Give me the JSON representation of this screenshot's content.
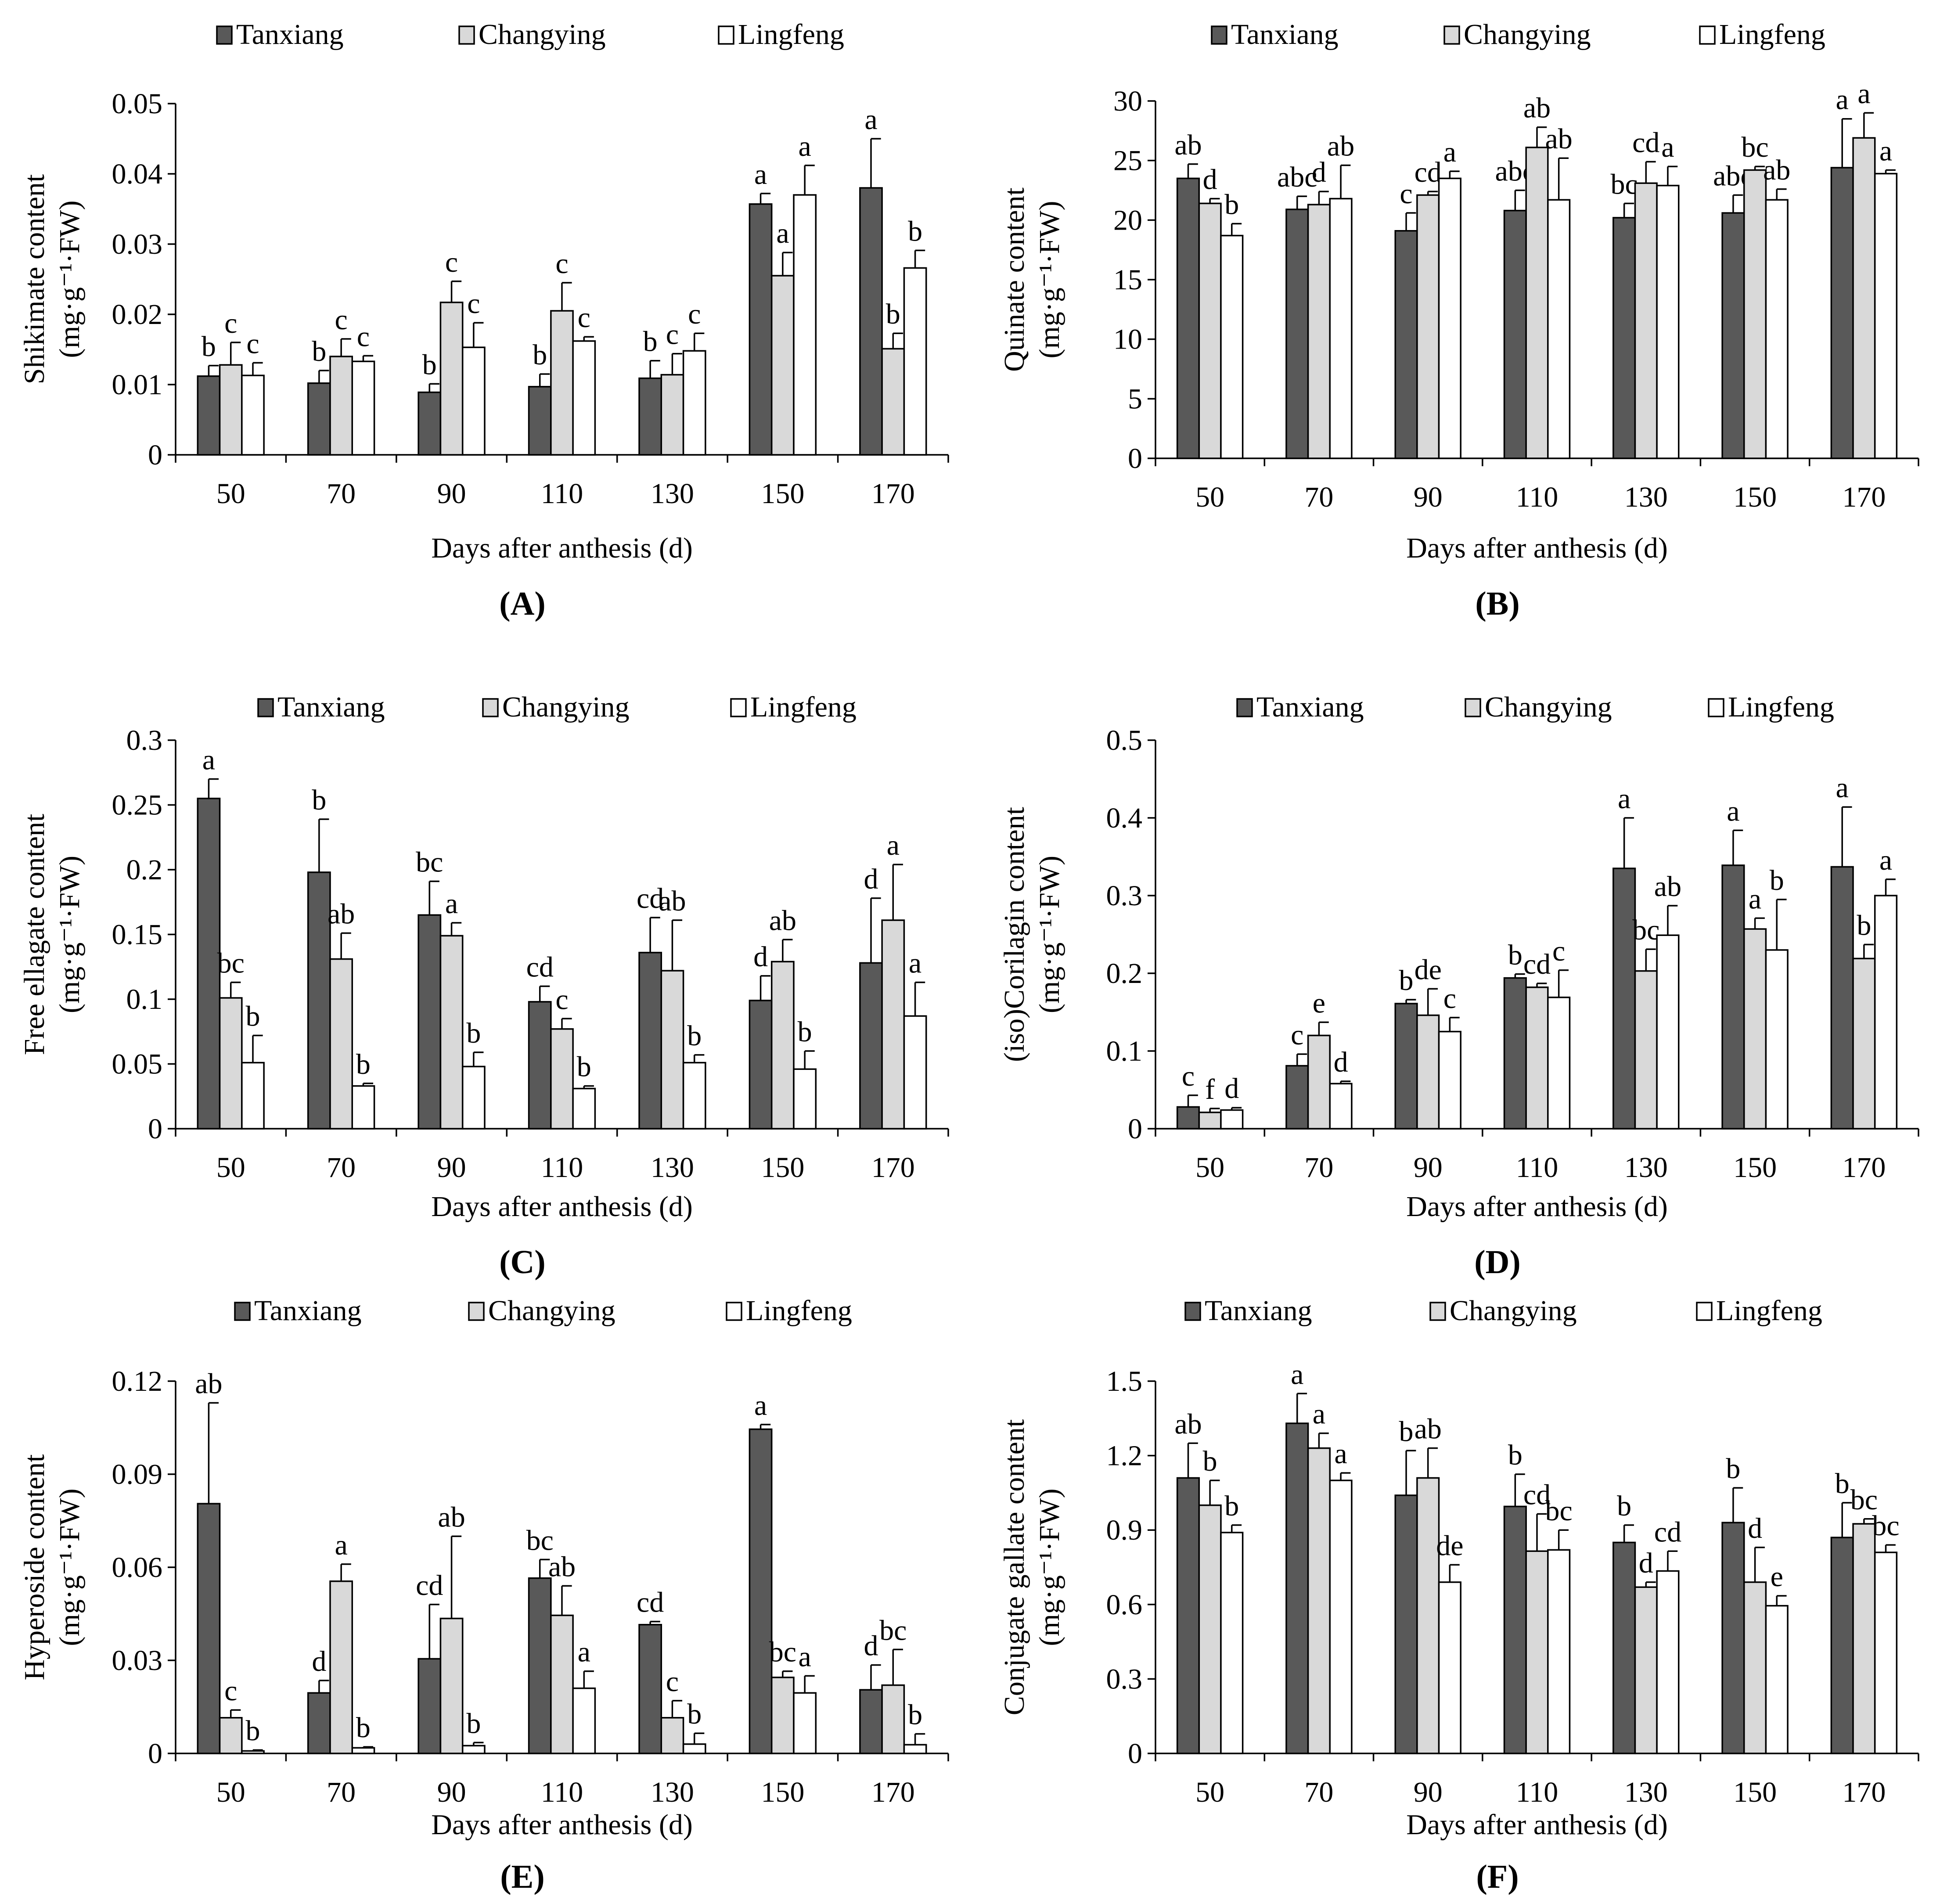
{
  "colors": {
    "Tanxiang": "#595959",
    "Changying": "#d9d9d9",
    "Lingfeng": "#ffffff",
    "stroke": "#000000"
  },
  "chart_data": [
    {
      "panel": "A",
      "type": "bar",
      "ylabel": "Shikimate content",
      "ylabel_unit": "(mg·g⁻¹·FW)",
      "xlabel": "Days after anthesis (d)",
      "legend": [
        "Tanxiang",
        "Changying",
        "Lingfeng"
      ],
      "categories": [
        "50",
        "70",
        "90",
        "110",
        "130",
        "150",
        "170"
      ],
      "ylim": [
        0,
        0.05
      ],
      "yticks": [
        {
          "v": 0,
          "t": "0"
        },
        {
          "v": 0.01,
          "t": "0.01"
        },
        {
          "v": 0.02,
          "t": "0.02"
        },
        {
          "v": 0.03,
          "t": "0.03"
        },
        {
          "v": 0.04,
          "t": "0.04"
        },
        {
          "v": 0.05,
          "t": "0.05"
        }
      ],
      "series": [
        {
          "name": "Tanxiang",
          "values": [
            0.0112,
            0.0102,
            0.0089,
            0.0097,
            0.0109,
            0.0357,
            0.038
          ],
          "errors": [
            0.0015,
            0.0018,
            0.0012,
            0.0018,
            0.0025,
            0.0015,
            0.007
          ],
          "labels": [
            "b",
            "b",
            "b",
            "b",
            "b",
            "a",
            "a"
          ]
        },
        {
          "name": "Changying",
          "values": [
            0.0128,
            0.014,
            0.0217,
            0.0205,
            0.0114,
            0.0255,
            0.0151
          ],
          "errors": [
            0.0032,
            0.0025,
            0.003,
            0.004,
            0.003,
            0.0033,
            0.0022
          ],
          "labels": [
            "c",
            "c",
            "c",
            "c",
            "c",
            "a",
            "b"
          ]
        },
        {
          "name": "Lingfeng",
          "values": [
            0.0113,
            0.0133,
            0.0153,
            0.0162,
            0.0148,
            0.037,
            0.0266
          ],
          "errors": [
            0.0018,
            0.0008,
            0.0035,
            0.0006,
            0.0025,
            0.0042,
            0.0025
          ],
          "labels": [
            "c",
            "c",
            "c",
            "c",
            "c",
            "a",
            "b"
          ]
        }
      ],
      "caption": "(A)"
    },
    {
      "panel": "B",
      "type": "bar",
      "ylabel": "Quinate content",
      "ylabel_unit": "(mg·g⁻¹·FW)",
      "xlabel": "Days after anthesis (d)",
      "legend": [
        "Tanxiang",
        "Changying",
        "Lingfeng"
      ],
      "categories": [
        "50",
        "70",
        "90",
        "110",
        "130",
        "150",
        "170"
      ],
      "ylim": [
        0,
        30
      ],
      "yticks": [
        {
          "v": 0,
          "t": "0"
        },
        {
          "v": 5,
          "t": "5"
        },
        {
          "v": 10,
          "t": "10"
        },
        {
          "v": 15,
          "t": "15"
        },
        {
          "v": 20,
          "t": "20"
        },
        {
          "v": 25,
          "t": "25"
        },
        {
          "v": 30,
          "t": "30"
        }
      ],
      "series": [
        {
          "name": "Tanxiang",
          "values": [
            23.5,
            20.9,
            19.1,
            20.8,
            20.2,
            20.6,
            24.4
          ],
          "errors": [
            1.2,
            1.1,
            1.5,
            1.7,
            1.2,
            1.5,
            4.1
          ],
          "labels": [
            "ab",
            "abc",
            "c",
            "abc",
            "bc",
            "abc",
            "a"
          ]
        },
        {
          "name": "Changying",
          "values": [
            21.4,
            21.3,
            22.1,
            26.1,
            23.1,
            24.2,
            26.9
          ],
          "errors": [
            0.4,
            1.1,
            0.3,
            1.7,
            1.8,
            0.3,
            2.1
          ],
          "labels": [
            "d",
            "d",
            "cd",
            "ab",
            "cd",
            "bc",
            "a"
          ]
        },
        {
          "name": "Lingfeng",
          "values": [
            18.7,
            21.8,
            23.5,
            21.7,
            22.9,
            21.7,
            23.9
          ],
          "errors": [
            1.0,
            2.8,
            0.6,
            3.5,
            1.6,
            0.9,
            0.3
          ],
          "labels": [
            "b",
            "ab",
            "a",
            "ab",
            "a",
            "ab",
            "a"
          ]
        }
      ],
      "caption": "(B)"
    },
    {
      "panel": "C",
      "type": "bar",
      "ylabel": "Free ellagate content",
      "ylabel_unit": "(mg·g⁻¹·FW)",
      "xlabel": "Days after anthesis (d)",
      "legend": [
        "Tanxiang",
        "Changying",
        "Lingfeng"
      ],
      "categories": [
        "50",
        "70",
        "90",
        "110",
        "130",
        "150",
        "170"
      ],
      "ylim": [
        0,
        0.3
      ],
      "yticks": [
        {
          "v": 0,
          "t": "0"
        },
        {
          "v": 0.05,
          "t": "0.05"
        },
        {
          "v": 0.1,
          "t": "0.1"
        },
        {
          "v": 0.15,
          "t": "0.15"
        },
        {
          "v": 0.2,
          "t": "0.2"
        },
        {
          "v": 0.25,
          "t": "0.25"
        },
        {
          "v": 0.3,
          "t": "0.3"
        }
      ],
      "series": [
        {
          "name": "Tanxiang",
          "values": [
            0.255,
            0.198,
            0.165,
            0.098,
            0.136,
            0.099,
            0.128
          ],
          "errors": [
            0.015,
            0.041,
            0.026,
            0.012,
            0.027,
            0.019,
            0.05
          ],
          "labels": [
            "a",
            "b",
            "bc",
            "cd",
            "cd",
            "d",
            "d"
          ]
        },
        {
          "name": "Changying",
          "values": [
            0.101,
            0.131,
            0.149,
            0.077,
            0.122,
            0.129,
            0.161
          ],
          "errors": [
            0.012,
            0.02,
            0.01,
            0.008,
            0.039,
            0.017,
            0.043
          ],
          "labels": [
            "bc",
            "ab",
            "a",
            "c",
            "ab",
            "ab",
            "a"
          ]
        },
        {
          "name": "Lingfeng",
          "values": [
            0.051,
            0.033,
            0.048,
            0.031,
            0.051,
            0.046,
            0.087
          ],
          "errors": [
            0.021,
            0.002,
            0.011,
            0.002,
            0.006,
            0.014,
            0.026
          ],
          "labels": [
            "b",
            "b",
            "b",
            "b",
            "b",
            "b",
            "a"
          ]
        }
      ],
      "caption": "(C)"
    },
    {
      "panel": "D",
      "type": "bar",
      "ylabel": "(iso)Corilagin content",
      "ylabel_unit": "(mg·g⁻¹·FW)",
      "xlabel": "Days after anthesis (d)",
      "legend": [
        "Tanxiang",
        "Changying",
        "Lingfeng"
      ],
      "categories": [
        "50",
        "70",
        "90",
        "110",
        "130",
        "150",
        "170"
      ],
      "ylim": [
        0,
        0.5
      ],
      "yticks": [
        {
          "v": 0,
          "t": "0"
        },
        {
          "v": 0.1,
          "t": "0.1"
        },
        {
          "v": 0.2,
          "t": "0.2"
        },
        {
          "v": 0.3,
          "t": "0.3"
        },
        {
          "v": 0.4,
          "t": "0.4"
        },
        {
          "v": 0.5,
          "t": "0.5"
        }
      ],
      "series": [
        {
          "name": "Tanxiang",
          "values": [
            0.028,
            0.081,
            0.161,
            0.194,
            0.335,
            0.339,
            0.337
          ],
          "errors": [
            0.015,
            0.015,
            0.005,
            0.005,
            0.065,
            0.045,
            0.077
          ],
          "labels": [
            "c",
            "c",
            "b",
            "b",
            "a",
            "a",
            "a"
          ]
        },
        {
          "name": "Changying",
          "values": [
            0.021,
            0.12,
            0.146,
            0.182,
            0.203,
            0.257,
            0.219
          ],
          "errors": [
            0.005,
            0.017,
            0.034,
            0.005,
            0.028,
            0.014,
            0.018
          ],
          "labels": [
            "f",
            "e",
            "de",
            "cd",
            "bc",
            "a",
            "b"
          ]
        },
        {
          "name": "Lingfeng",
          "values": [
            0.024,
            0.058,
            0.125,
            0.169,
            0.249,
            0.23,
            0.3
          ],
          "errors": [
            0.003,
            0.003,
            0.018,
            0.035,
            0.038,
            0.065,
            0.021
          ],
          "labels": [
            "d",
            "d",
            "c",
            "c",
            "ab",
            "b",
            "a"
          ]
        }
      ],
      "caption": "(D)"
    },
    {
      "panel": "E",
      "type": "bar",
      "ylabel": "Hyperoside content",
      "ylabel_unit": "(mg·g⁻¹·FW)",
      "xlabel": "Days after anthesis (d)",
      "legend": [
        "Tanxiang",
        "Changying",
        "Lingfeng"
      ],
      "categories": [
        "50",
        "70",
        "90",
        "110",
        "130",
        "150",
        "170"
      ],
      "ylim": [
        0,
        0.12
      ],
      "yticks": [
        {
          "v": 0,
          "t": "0"
        },
        {
          "v": 0.03,
          "t": "0.03"
        },
        {
          "v": 0.06,
          "t": "0.06"
        },
        {
          "v": 0.09,
          "t": "0.09"
        },
        {
          "v": 0.12,
          "t": "0.12"
        }
      ],
      "series": [
        {
          "name": "Tanxiang",
          "values": [
            0.0805,
            0.0195,
            0.0305,
            0.0565,
            0.0415,
            0.1045,
            0.0205
          ],
          "errors": [
            0.0325,
            0.004,
            0.0175,
            0.006,
            0.001,
            0.0015,
            0.008
          ],
          "labels": [
            "ab",
            "d",
            "cd",
            "bc",
            "cd",
            "a",
            "d"
          ]
        },
        {
          "name": "Changying",
          "values": [
            0.0115,
            0.0555,
            0.0435,
            0.0445,
            0.0115,
            0.0245,
            0.022
          ],
          "errors": [
            0.0025,
            0.0055,
            0.0265,
            0.0095,
            0.0055,
            0.002,
            0.0115
          ],
          "labels": [
            "c",
            "a",
            "ab",
            "ab",
            "c",
            "bc",
            "bc"
          ]
        },
        {
          "name": "Lingfeng",
          "values": [
            0.0008,
            0.0018,
            0.0025,
            0.021,
            0.003,
            0.0195,
            0.0028
          ],
          "errors": [
            0.0003,
            0.0003,
            0.001,
            0.0055,
            0.0035,
            0.0055,
            0.0035
          ],
          "labels": [
            "b",
            "b",
            "b",
            "a",
            "b",
            "a",
            "b"
          ]
        }
      ],
      "caption": "(E)"
    },
    {
      "panel": "F",
      "type": "bar",
      "ylabel": "Conjugate gallate content",
      "ylabel_unit": "(mg·g⁻¹·FW)",
      "xlabel": "Days after anthesis (d)",
      "legend": [
        "Tanxiang",
        "Changying",
        "Lingfeng"
      ],
      "categories": [
        "50",
        "70",
        "90",
        "110",
        "130",
        "150",
        "170"
      ],
      "ylim": [
        0,
        1.5
      ],
      "yticks": [
        {
          "v": 0,
          "t": "0"
        },
        {
          "v": 0.3,
          "t": "0.3"
        },
        {
          "v": 0.6,
          "t": "0.6"
        },
        {
          "v": 0.9,
          "t": "0.9"
        },
        {
          "v": 1.2,
          "t": "1.2"
        },
        {
          "v": 1.5,
          "t": "1.5"
        }
      ],
      "series": [
        {
          "name": "Tanxiang",
          "values": [
            1.11,
            1.33,
            1.04,
            0.995,
            0.85,
            0.93,
            0.87
          ],
          "errors": [
            0.14,
            0.12,
            0.18,
            0.13,
            0.07,
            0.14,
            0.14
          ],
          "labels": [
            "ab",
            "a",
            "b",
            "b",
            "b",
            "b",
            "b"
          ]
        },
        {
          "name": "Changying",
          "values": [
            1.0,
            1.23,
            1.11,
            0.815,
            0.67,
            0.69,
            0.925
          ],
          "errors": [
            0.1,
            0.06,
            0.12,
            0.15,
            0.02,
            0.14,
            0.02
          ],
          "labels": [
            "b",
            "a",
            "ab",
            "cd",
            "d",
            "d",
            "bc"
          ]
        },
        {
          "name": "Lingfeng",
          "values": [
            0.89,
            1.1,
            0.69,
            0.82,
            0.735,
            0.595,
            0.81
          ],
          "errors": [
            0.03,
            0.03,
            0.07,
            0.08,
            0.08,
            0.04,
            0.03
          ],
          "labels": [
            "b",
            "a",
            "de",
            "bc",
            "cd",
            "e",
            "bc"
          ]
        }
      ],
      "caption": "(F)"
    }
  ]
}
